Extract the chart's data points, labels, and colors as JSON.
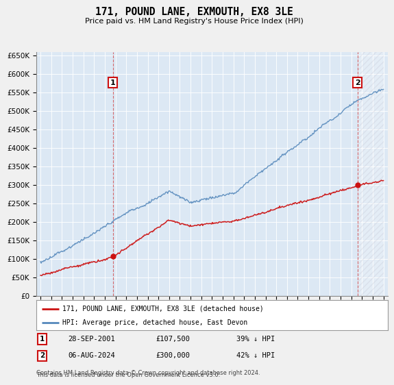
{
  "title": "171, POUND LANE, EXMOUTH, EX8 3LE",
  "subtitle": "Price paid vs. HM Land Registry's House Price Index (HPI)",
  "ylim": [
    0,
    660000
  ],
  "yticks": [
    0,
    50000,
    100000,
    150000,
    200000,
    250000,
    300000,
    350000,
    400000,
    450000,
    500000,
    550000,
    600000,
    650000
  ],
  "year_start": 1995,
  "year_end": 2027,
  "fig_bg": "#f0f0f0",
  "plot_bg": "#dce8f4",
  "hpi_color": "#5588bb",
  "price_color": "#cc1111",
  "sale1_date": "28-SEP-2001",
  "sale1_price": 107500,
  "sale1_hpi_pct": "39%",
  "sale1_year": 2001.75,
  "sale2_date": "06-AUG-2024",
  "sale2_price": 300000,
  "sale2_hpi_pct": "42%",
  "sale2_year": 2024.583,
  "legend_label1": "171, POUND LANE, EXMOUTH, EX8 3LE (detached house)",
  "legend_label2": "HPI: Average price, detached house, East Devon",
  "footnote1": "Contains HM Land Registry data © Crown copyright and database right 2024.",
  "footnote2": "This data is licensed under the Open Government Licence v3.0."
}
